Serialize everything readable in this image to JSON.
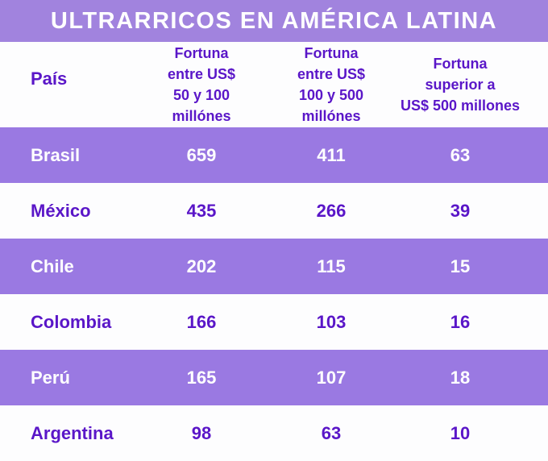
{
  "title": "ULTRARRICOS EN AMÉRICA LATINA",
  "colors": {
    "title_bar_bg": "#a183de",
    "row_purple_bg": "#9a79e2",
    "text_violet": "#5a16c8",
    "text_white": "#ffffff",
    "page_bg": "#fdfdfe"
  },
  "table": {
    "columns": [
      {
        "label": "País"
      },
      {
        "label": "Fortuna\nentre US$\n50 y 100\nmillónes"
      },
      {
        "label": "Fortuna\nentre US$\n100 y 500\nmillónes"
      },
      {
        "label": "Fortuna\nsuperior a\nUS$ 500 millones"
      }
    ],
    "rows": [
      {
        "country": "Brasil",
        "values": [
          "659",
          "411",
          "63"
        ]
      },
      {
        "country": "México",
        "values": [
          "435",
          "266",
          "39"
        ]
      },
      {
        "country": "Chile",
        "values": [
          "202",
          "115",
          "15"
        ]
      },
      {
        "country": "Colombia",
        "values": [
          "166",
          "103",
          "16"
        ]
      },
      {
        "country": "Perú",
        "values": [
          "165",
          "107",
          "18"
        ]
      },
      {
        "country": "Argentina",
        "values": [
          "98",
          "63",
          "10"
        ]
      }
    ]
  },
  "chart_data": {
    "type": "table",
    "title": "ULTRARRICOS EN AMÉRICA LATINA",
    "columns": [
      "País",
      "Fortuna entre US$ 50 y 100 millónes",
      "Fortuna entre US$ 100 y 500 millónes",
      "Fortuna superior a US$ 500 millones"
    ],
    "rows": [
      [
        "Brasil",
        659,
        411,
        63
      ],
      [
        "México",
        435,
        266,
        39
      ],
      [
        "Chile",
        202,
        115,
        15
      ],
      [
        "Colombia",
        166,
        103,
        16
      ],
      [
        "Perú",
        165,
        107,
        18
      ],
      [
        "Argentina",
        98,
        63,
        10
      ]
    ],
    "row_striping": "odd rows purple (#9a79e2) with white text, even rows white with violet (#5a16c8) text"
  }
}
